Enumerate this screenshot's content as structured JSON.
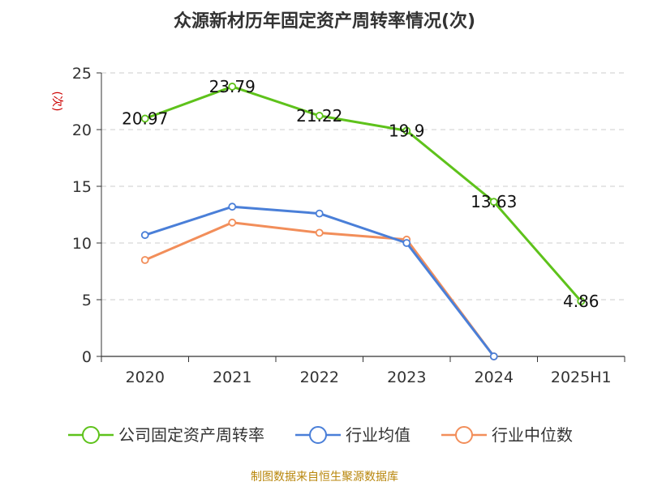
{
  "chart_data": {
    "type": "line",
    "title": "众源新材历年固定资产周转率情况(次)",
    "ylabel": "(次)",
    "ylabel_color": "#cc0000",
    "categories": [
      "2020",
      "2021",
      "2022",
      "2023",
      "2024",
      "2025H1"
    ],
    "y_ticks": [
      "0",
      "5",
      "10",
      "15",
      "20",
      "25"
    ],
    "ylim": [
      0,
      25
    ],
    "grid": true,
    "legend_position": "bottom",
    "series": [
      {
        "name": "公司固定资产周转率",
        "color": "#5ec21b",
        "values": [
          20.97,
          23.79,
          21.22,
          19.9,
          13.63,
          4.86
        ],
        "labels": [
          "20.97",
          "23.79",
          "21.22",
          "19.9",
          "13.63",
          "4.86"
        ]
      },
      {
        "name": "行业均值",
        "color": "#4a7fd8",
        "values": [
          10.7,
          13.2,
          12.6,
          10.0,
          0.0,
          null
        ]
      },
      {
        "name": "行业中位数",
        "color": "#f28e5a",
        "values": [
          8.5,
          11.8,
          10.9,
          10.3,
          0.0,
          null
        ]
      }
    ]
  },
  "source": "制图数据来自恒生聚源数据库"
}
